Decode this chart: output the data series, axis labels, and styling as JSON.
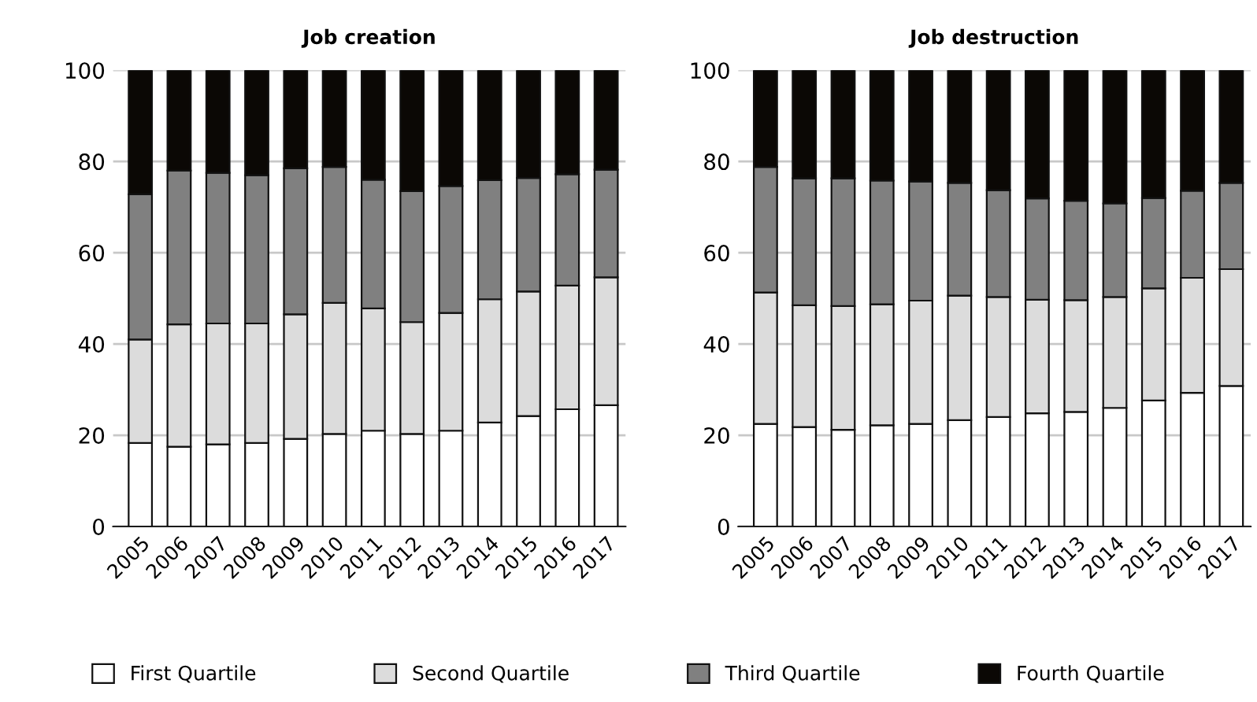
{
  "chart_data": [
    {
      "type": "bar",
      "title": "Job creation",
      "stacked": true,
      "grid": "y",
      "legend": "bottom",
      "categories": [
        "2005",
        "2006",
        "2007",
        "2008",
        "2009",
        "2010",
        "2011",
        "2012",
        "2013",
        "2014",
        "2015",
        "2016",
        "2017"
      ],
      "ylim": [
        0,
        100
      ],
      "yticks": [
        0,
        20,
        40,
        60,
        80,
        100
      ],
      "series": [
        {
          "name": "First Quartile",
          "color": "#ffffff",
          "values": [
            18.3,
            17.5,
            18.0,
            18.3,
            19.2,
            20.3,
            21.0,
            20.3,
            21.0,
            22.8,
            24.2,
            25.7,
            26.6
          ]
        },
        {
          "name": "Second Quartile",
          "color": "#dcdcdc",
          "values": [
            22.7,
            26.8,
            26.5,
            26.2,
            27.3,
            28.7,
            26.8,
            24.5,
            25.8,
            27.0,
            27.3,
            27.1,
            28.0
          ]
        },
        {
          "name": "Third Quartile",
          "color": "#808080",
          "values": [
            31.8,
            33.7,
            33.0,
            32.5,
            32.0,
            29.8,
            28.2,
            28.7,
            27.8,
            26.1,
            24.9,
            24.4,
            23.6
          ]
        },
        {
          "name": "Fourth Quartile",
          "color": "#0b0805",
          "values": [
            27.2,
            22.0,
            22.5,
            23.0,
            21.5,
            21.2,
            24.0,
            26.5,
            25.4,
            24.1,
            23.6,
            22.8,
            21.8
          ]
        }
      ]
    },
    {
      "type": "bar",
      "title": "Job destruction",
      "stacked": true,
      "grid": "y",
      "legend": false,
      "categories": [
        "2005",
        "2006",
        "2007",
        "2008",
        "2009",
        "2010",
        "2011",
        "2012",
        "2013",
        "2014",
        "2015",
        "2016",
        "2017"
      ],
      "ylim": [
        0,
        100
      ],
      "yticks": [
        0,
        20,
        40,
        60,
        80,
        100
      ],
      "series": [
        {
          "color": "#ffffff",
          "values": [
            22.5,
            21.8,
            21.2,
            22.2,
            22.5,
            23.3,
            24.0,
            24.8,
            25.1,
            26.0,
            27.6,
            29.3,
            30.8
          ]
        },
        {
          "color": "#dcdcdc",
          "values": [
            28.8,
            26.7,
            27.1,
            26.5,
            27.0,
            27.3,
            26.3,
            24.9,
            24.5,
            24.3,
            24.6,
            25.2,
            25.6
          ]
        },
        {
          "color": "#808080",
          "values": [
            27.5,
            27.8,
            28.0,
            27.1,
            26.1,
            24.7,
            23.4,
            22.2,
            21.8,
            20.5,
            19.8,
            19.1,
            18.9
          ]
        },
        {
          "color": "#0b0805",
          "values": [
            21.2,
            23.7,
            23.7,
            24.2,
            24.4,
            24.7,
            26.3,
            28.1,
            28.6,
            29.2,
            28.0,
            26.4,
            24.7
          ]
        }
      ]
    }
  ]
}
